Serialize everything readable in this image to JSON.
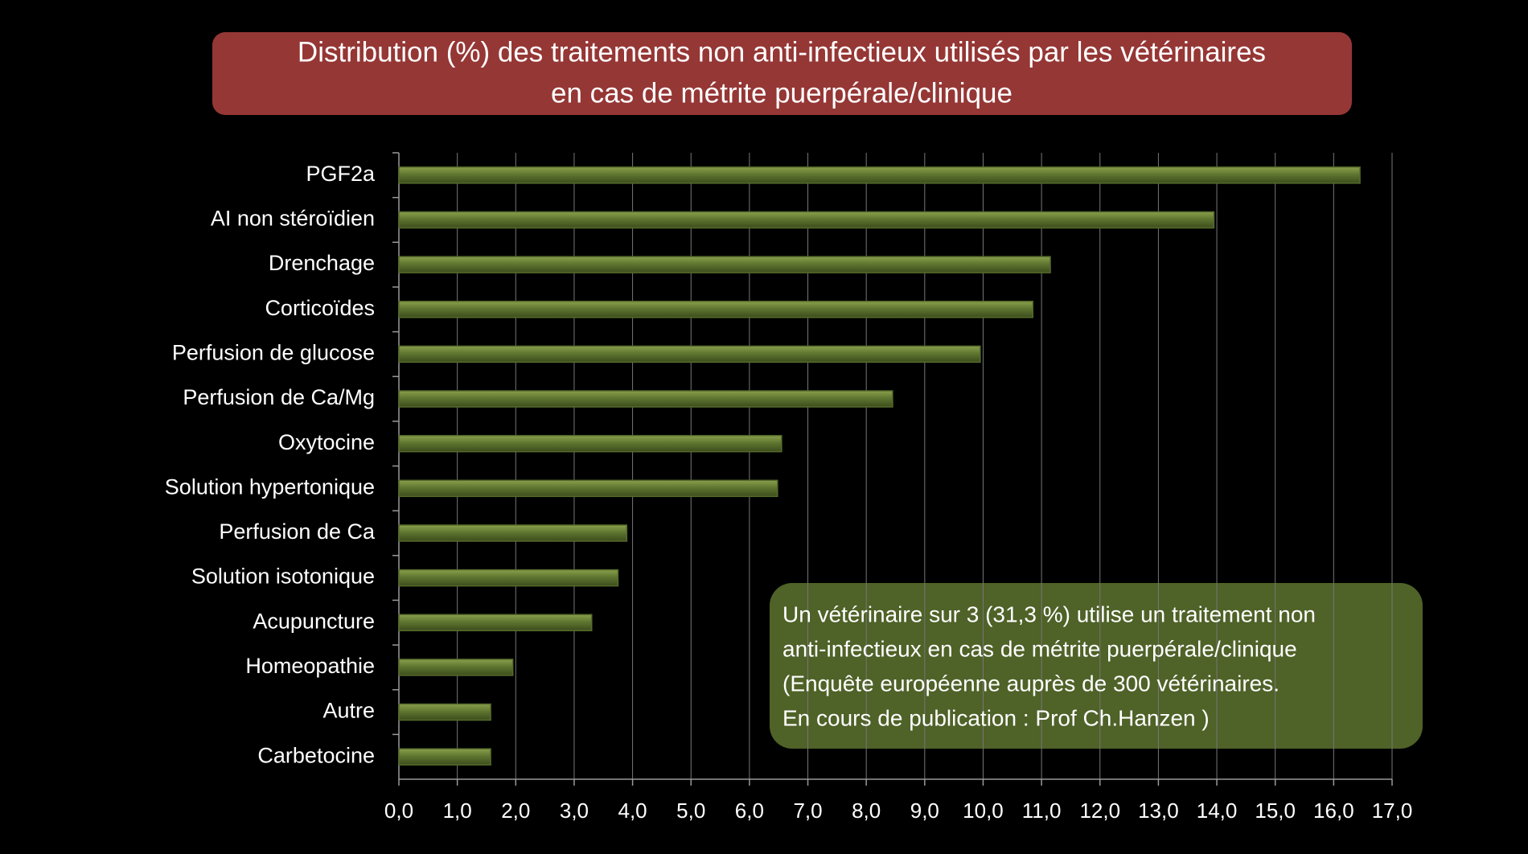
{
  "chart_data": {
    "type": "bar",
    "orientation": "horizontal",
    "title": [
      "Distribution (%) des traitements non anti-infectieux utilisés par les vétérinaires",
      "en cas de métrite puerpérale/clinique"
    ],
    "categories": [
      "PGF2a",
      "AI non stéroïdien",
      "Drenchage",
      "Corticoïdes",
      "Perfusion de glucose",
      "Perfusion de Ca/Mg",
      "Oxytocine",
      "Solution hypertonique",
      "Perfusion de Ca",
      "Solution isotonique",
      "Acupuncture",
      "Homeopathie",
      "Autre",
      "Carbetocine"
    ],
    "values": [
      16.45,
      13.95,
      11.15,
      10.85,
      9.95,
      8.45,
      6.55,
      6.48,
      3.9,
      3.75,
      3.3,
      1.95,
      1.57,
      1.57
    ],
    "color": "#566b2c",
    "xlim": [
      0,
      17
    ],
    "xticks": [
      {
        "value": 0,
        "label": "0,0"
      },
      {
        "value": 1,
        "label": "1,0"
      },
      {
        "value": 2,
        "label": "2,0"
      },
      {
        "value": 3,
        "label": "3,0"
      },
      {
        "value": 4,
        "label": "4,0"
      },
      {
        "value": 5,
        "label": "5,0"
      },
      {
        "value": 6,
        "label": "6,0"
      },
      {
        "value": 7,
        "label": "7,0"
      },
      {
        "value": 8,
        "label": "8,0"
      },
      {
        "value": 9,
        "label": "9,0"
      },
      {
        "value": 10,
        "label": "10,0"
      },
      {
        "value": 11,
        "label": "11,0"
      },
      {
        "value": 12,
        "label": "12,0"
      },
      {
        "value": 13,
        "label": "13,0"
      },
      {
        "value": 14,
        "label": "14,0"
      },
      {
        "value": 15,
        "label": "15,0"
      },
      {
        "value": 16,
        "label": "16,0"
      },
      {
        "value": 17,
        "label": "17,0"
      }
    ],
    "grid": true,
    "annotation": [
      "Un vétérinaire sur 3 (31,3 %) utilise un traitement non",
      "anti-infectieux en cas de métrite puerpérale/clinique",
      "(Enquête européenne auprès de 300 vétérinaires.",
      "En cours de publication : Prof Ch.Hanzen )"
    ]
  }
}
